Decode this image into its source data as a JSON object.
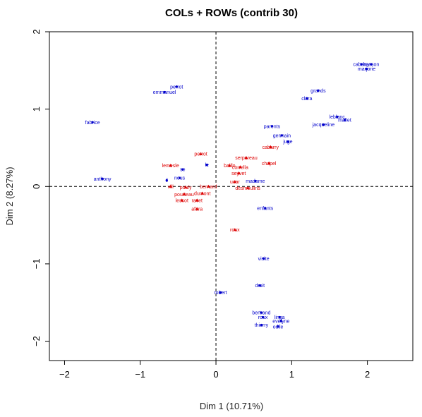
{
  "chart_data": {
    "type": "scatter",
    "title": "COLs + ROWs (contrib 30)",
    "xlabel": "Dim 1 (10.71%)",
    "ylabel": "Dim 2 (8.27%)",
    "xlim": [
      -2.2,
      2.6
    ],
    "ylim": [
      -2.25,
      2.0
    ],
    "xticks": [
      -2,
      -1,
      0,
      1,
      2
    ],
    "yticks": [
      -2,
      -1,
      0,
      1,
      2
    ],
    "reference_lines": {
      "x": 0,
      "y": 0,
      "style": "dashed"
    },
    "colors": {
      "rows": "#0000cc",
      "cols": "#dd0000"
    },
    "series": [
      {
        "marker": "dot",
        "color": "#0000cc",
        "points": [
          {
            "label": "cabarry",
            "x": 1.92,
            "y": 1.58
          },
          {
            "label": "hasson",
            "x": 2.05,
            "y": 1.58
          },
          {
            "label": "marjorie",
            "x": 1.99,
            "y": 1.52
          },
          {
            "label": "grands",
            "x": 1.35,
            "y": 1.24
          },
          {
            "label": "clara",
            "x": 1.2,
            "y": 1.14
          },
          {
            "label": "perrot",
            "x": -0.52,
            "y": 1.29
          },
          {
            "label": "emmanuel",
            "x": -0.68,
            "y": 1.22
          },
          {
            "label": "fabrice",
            "x": -1.63,
            "y": 0.83
          },
          {
            "label": "leblanc",
            "x": 1.6,
            "y": 0.9
          },
          {
            "label": "mallet",
            "x": 1.7,
            "y": 0.86
          },
          {
            "label": "jacqueline",
            "x": 1.42,
            "y": 0.8
          },
          {
            "label": "parents",
            "x": 0.74,
            "y": 0.78
          },
          {
            "label": "germain",
            "x": 0.87,
            "y": 0.66
          },
          {
            "label": "juge",
            "x": 0.95,
            "y": 0.58
          },
          {
            "label": "se",
            "x": -0.44,
            "y": 0.22
          },
          {
            "label": "le",
            "x": -0.12,
            "y": 0.28
          },
          {
            "label": "nous",
            "x": -0.48,
            "y": 0.11
          },
          {
            "label": "il",
            "x": -0.65,
            "y": 0.08
          },
          {
            "label": "anthony",
            "x": -1.5,
            "y": 0.1
          },
          {
            "label": "madame",
            "x": 0.52,
            "y": 0.07
          },
          {
            "label": "enfants",
            "x": 0.65,
            "y": -0.28
          },
          {
            "label": "visite",
            "x": 0.63,
            "y": -0.93
          },
          {
            "label": "droit",
            "x": 0.58,
            "y": -1.28
          },
          {
            "label": "robert",
            "x": 0.06,
            "y": -1.37
          },
          {
            "label": "bertrand",
            "x": 0.6,
            "y": -1.63
          },
          {
            "label": "roux",
            "x": 0.62,
            "y": -1.69
          },
          {
            "label": "linga",
            "x": 0.84,
            "y": -1.69
          },
          {
            "label": "evelyne",
            "x": 0.86,
            "y": -1.74
          },
          {
            "label": "thierry",
            "x": 0.6,
            "y": -1.79
          },
          {
            "label": "odile",
            "x": 0.82,
            "y": -1.81
          }
        ]
      },
      {
        "marker": "triangle",
        "color": "#dd0000",
        "points": [
          {
            "label": "perrot",
            "x": -0.2,
            "y": 0.42
          },
          {
            "label": "serpereau",
            "x": 0.4,
            "y": 0.37
          },
          {
            "label": "cabarry",
            "x": 0.72,
            "y": 0.51
          },
          {
            "label": "chapel",
            "x": 0.7,
            "y": 0.3
          },
          {
            "label": "lemesle",
            "x": -0.6,
            "y": 0.27
          },
          {
            "label": "baillo",
            "x": 0.18,
            "y": 0.27
          },
          {
            "label": "corrella",
            "x": 0.32,
            "y": 0.25
          },
          {
            "label": "seyvet",
            "x": 0.3,
            "y": 0.17
          },
          {
            "label": "ucar",
            "x": 0.25,
            "y": 0.06
          },
          {
            "label": "desmoulins",
            "x": 0.42,
            "y": -0.02
          },
          {
            "label": "vill",
            "x": -0.6,
            "y": 0.0
          },
          {
            "label": "pouly",
            "x": -0.4,
            "y": -0.01
          },
          {
            "label": "bernard",
            "x": -0.1,
            "y": 0.0
          },
          {
            "label": "pourteau",
            "x": -0.42,
            "y": -0.1
          },
          {
            "label": "dumont",
            "x": -0.18,
            "y": -0.09
          },
          {
            "label": "lescot",
            "x": -0.45,
            "y": -0.18
          },
          {
            "label": "ravet",
            "x": -0.25,
            "y": -0.18
          },
          {
            "label": "afara",
            "x": -0.25,
            "y": -0.29
          },
          {
            "label": "roux",
            "x": 0.25,
            "y": -0.56
          }
        ]
      }
    ]
  }
}
